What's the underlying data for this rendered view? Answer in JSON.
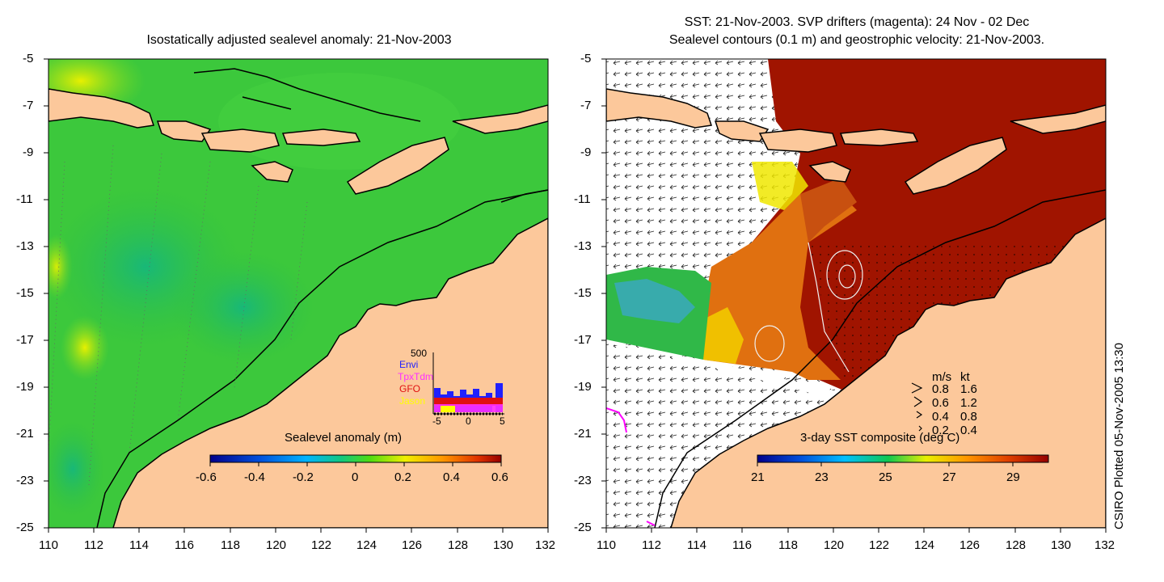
{
  "left_panel": {
    "title": "Isostatically adjusted sealevel anomaly: 21-Nov-2003",
    "colorbar": {
      "label": "Sealevel anomaly (m)",
      "ticks": [
        "-0.6",
        "-0.4",
        "-0.2",
        "0",
        "0.2",
        "0.4",
        "0.6"
      ]
    },
    "inset": {
      "max_label": "500",
      "missions": [
        {
          "name": "Envi",
          "color": "#2020ff"
        },
        {
          "name": "TpxTdm",
          "color": "#ff30ff"
        },
        {
          "name": "GFO",
          "color": "#e01010"
        },
        {
          "name": "Jason",
          "color": "#ffff00"
        }
      ],
      "x_ticks": [
        "-5",
        "0",
        "5"
      ]
    }
  },
  "right_panel": {
    "title_line1": "SST: 21-Nov-2003. SVP drifters (magenta): 24 Nov - 02 Dec",
    "title_line2": "Sealevel contours (0.1 m) and geostrophic velocity: 21-Nov-2003.",
    "colorbar": {
      "label": "3-day SST composite (deg C)",
      "ticks": [
        "21",
        "23",
        "25",
        "27",
        "29"
      ]
    },
    "velocity_legend": {
      "header_ms": "m/s",
      "header_kt": "kt",
      "rows": [
        {
          "ms": "0.8",
          "kt": "1.6"
        },
        {
          "ms": "0.6",
          "kt": "1.2"
        },
        {
          "ms": "0.4",
          "kt": "0.8"
        },
        {
          "ms": "0.2",
          "kt": "0.4"
        }
      ]
    }
  },
  "axes": {
    "x_ticks": [
      "110",
      "112",
      "114",
      "116",
      "118",
      "120",
      "122",
      "124",
      "126",
      "128",
      "130",
      "132"
    ],
    "y_ticks": [
      "-5",
      "-7",
      "-9",
      "-11",
      "-13",
      "-15",
      "-17",
      "-19",
      "-21",
      "-23",
      "-25"
    ],
    "lon_range": [
      110,
      132
    ],
    "lat_range": [
      -25,
      -5
    ]
  },
  "credit": "CSIRO Plotted 05-Nov-2005 13:30",
  "colors": {
    "land": "#fcc89b",
    "ocean_green": "#3cc83c",
    "sst_dark": "#a01400",
    "sst_orange": "#e07010",
    "coast": "#000000"
  }
}
